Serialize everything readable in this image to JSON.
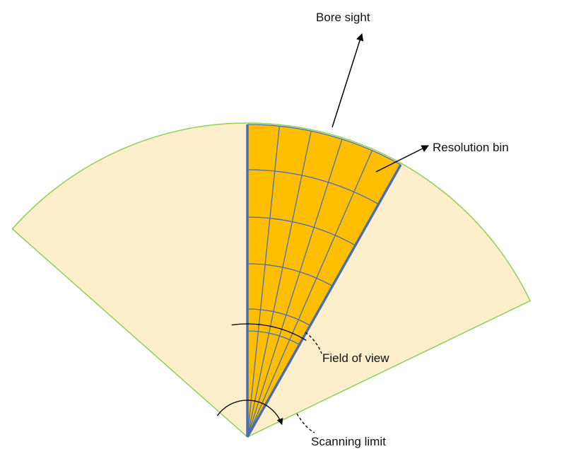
{
  "labels": {
    "bore_sight": "Bore sight",
    "resolution_bin": "Resolution bin",
    "field_of_view": "Field of view",
    "scanning_limit": "Scanning limit"
  }
}
